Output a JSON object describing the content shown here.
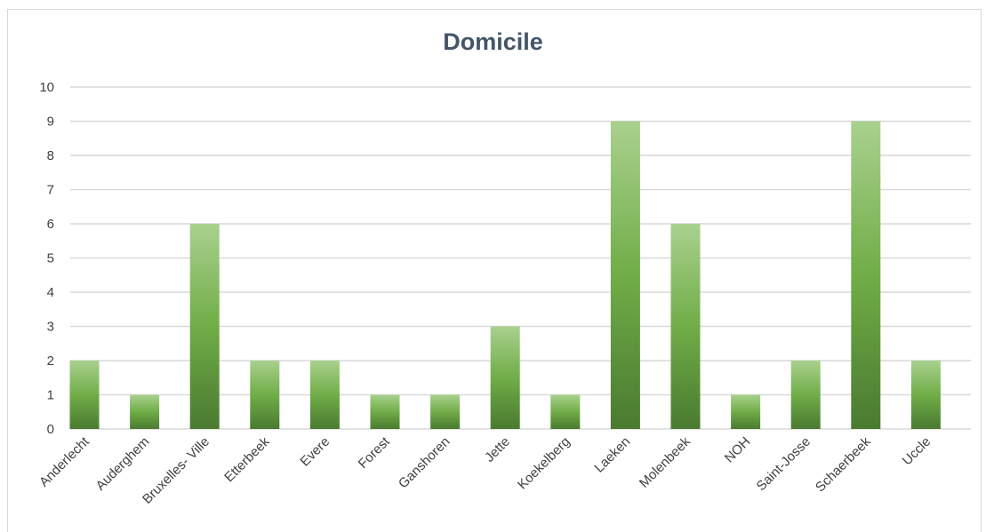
{
  "chart_data": {
    "type": "bar",
    "title": "Domicile",
    "categories": [
      "Anderlecht",
      "Auderghem",
      "Bruxelles- Ville",
      "Etterbeek",
      "Evere",
      "Forest",
      "Ganshoren",
      "Jette",
      "Koekelberg",
      "Laeken",
      "Molenbeek",
      "NOH",
      "Saint-Josse",
      "Schaerbeek",
      "Uccle"
    ],
    "values": [
      2,
      1,
      6,
      2,
      2,
      1,
      1,
      3,
      1,
      9,
      6,
      1,
      2,
      9,
      2
    ],
    "yticks": [
      "0",
      "1",
      "2",
      "3",
      "4",
      "5",
      "6",
      "7",
      "8",
      "9",
      "10"
    ],
    "ylim": [
      0,
      10
    ],
    "xlabel": "",
    "ylabel": "",
    "grid": true,
    "legend": "none",
    "colors": {
      "bar_top": "#a9d18e",
      "bar_mid": "#70ad47",
      "bar_bottom": "#4a7a30",
      "grid": "#d9d9d9",
      "title": "#44546a"
    }
  }
}
